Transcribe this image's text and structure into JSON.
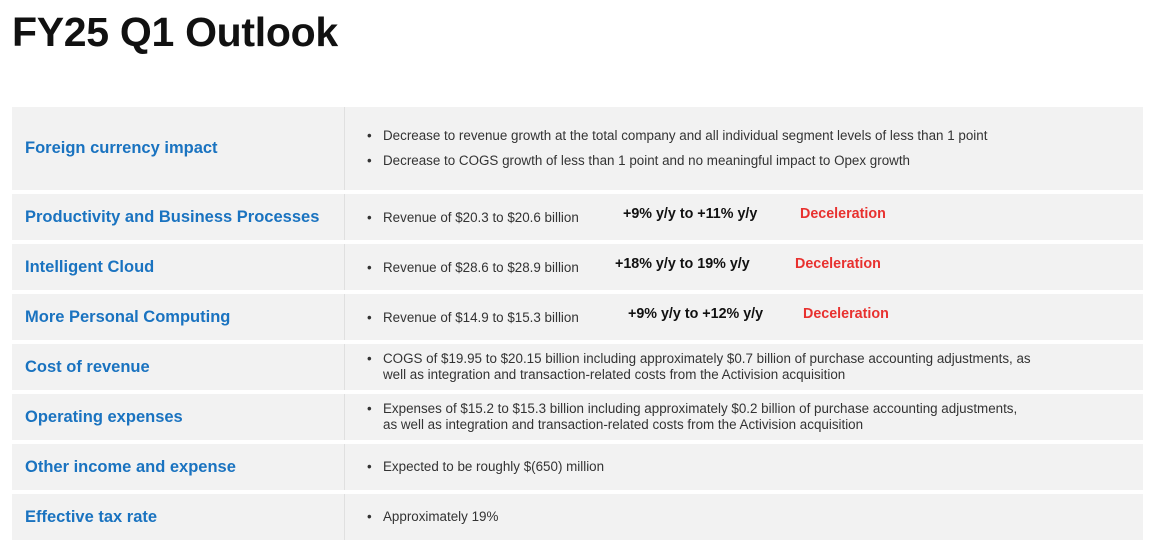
{
  "page": {
    "title": "FY25 Q1 Outlook"
  },
  "rows": [
    {
      "label": "Foreign currency impact",
      "bullets": [
        "Decrease to revenue growth at the total company and all individual segment levels of less than 1 point",
        "Decrease to COGS growth of less than 1 point and no meaningful impact to Opex growth"
      ]
    },
    {
      "label": "Productivity and Business Processes",
      "bullet": "Revenue of $20.3 to $20.6 billion",
      "growth": "+9% y/y to +11% y/y",
      "trend": "Deceleration"
    },
    {
      "label": "Intelligent Cloud",
      "bullet": "Revenue of $28.6 to $28.9 billion",
      "growth": "+18% y/y to 19% y/y",
      "trend": "Deceleration"
    },
    {
      "label": "More Personal Computing",
      "bullet": "Revenue of $14.9 to $15.3 billion",
      "growth": "+9% y/y to +12% y/y",
      "trend": "Deceleration"
    },
    {
      "label": "Cost of revenue",
      "bullet_line1": "COGS of $19.95 to $20.15 billion including approximately $0.7 billion of purchase accounting adjustments, as",
      "bullet_line2": "well as integration and transaction-related costs from the Activision acquisition"
    },
    {
      "label": "Operating expenses",
      "bullet_line1": "Expenses of $15.2 to $15.3 billion including approximately $0.2 billion of purchase accounting adjustments,",
      "bullet_line2": "as well as integration and transaction-related costs from the Activision acquisition"
    },
    {
      "label": "Other income and expense",
      "bullet": "Expected to be roughly $(650) million"
    },
    {
      "label": "Effective tax rate",
      "bullet": "Approximately 19%"
    }
  ],
  "bullet_symbol": "•",
  "colors": {
    "label": "#1a73c0",
    "trend": "#e8312f",
    "row_bg": "#f2f2f2"
  }
}
